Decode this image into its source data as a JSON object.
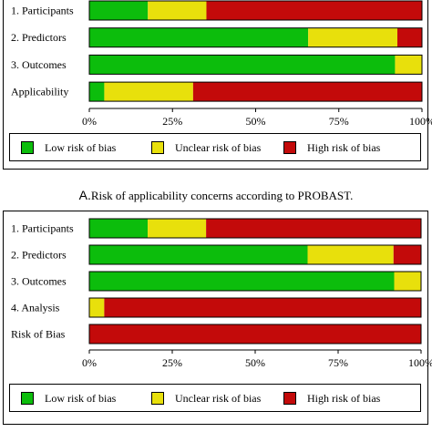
{
  "colors": {
    "low": "#0cbd0c",
    "unclear": "#e8e00c",
    "high": "#c30a0a"
  },
  "caption": {
    "letter": "A.",
    "text": "Risk of applicability concerns according to PROBAST."
  },
  "legend": {
    "low": "Low risk of bias",
    "unclear": "Unclear risk of bias",
    "high": "High risk of bias"
  },
  "chart_data": [
    {
      "type": "bar",
      "orientation": "horizontal",
      "stacked": true,
      "title": "",
      "categories": [
        "1. Participants",
        "2. Predictors",
        "3. Outcomes",
        "Applicability"
      ],
      "series": [
        {
          "name": "Low risk of bias",
          "values": [
            17.6,
            65.8,
            91.9,
            4.5
          ]
        },
        {
          "name": "Unclear risk of bias",
          "values": [
            17.6,
            26.8,
            8.1,
            26.7
          ]
        },
        {
          "name": "High risk of bias",
          "values": [
            64.8,
            7.4,
            0,
            68.8
          ]
        }
      ],
      "x_ticks": [
        "0%",
        "25%",
        "50%",
        "75%",
        "100%"
      ],
      "xlim": [
        0,
        100
      ],
      "legend": "bottom"
    },
    {
      "type": "bar",
      "orientation": "horizontal",
      "stacked": true,
      "title": "",
      "categories": [
        "1. Participants",
        "2. Predictors",
        "3. Outcomes",
        "4. Analysis",
        "Risk of Bias"
      ],
      "series": [
        {
          "name": "Low risk of bias",
          "values": [
            17.6,
            65.8,
            91.9,
            0,
            0
          ]
        },
        {
          "name": "Unclear risk of bias",
          "values": [
            17.6,
            25.9,
            8.1,
            4.5,
            0
          ]
        },
        {
          "name": "High risk of bias",
          "values": [
            64.8,
            8.3,
            0,
            95.5,
            100
          ]
        }
      ],
      "x_ticks": [
        "0%",
        "25%",
        "50%",
        "75%",
        "100%"
      ],
      "xlim": [
        0,
        100
      ],
      "legend": "bottom"
    }
  ]
}
